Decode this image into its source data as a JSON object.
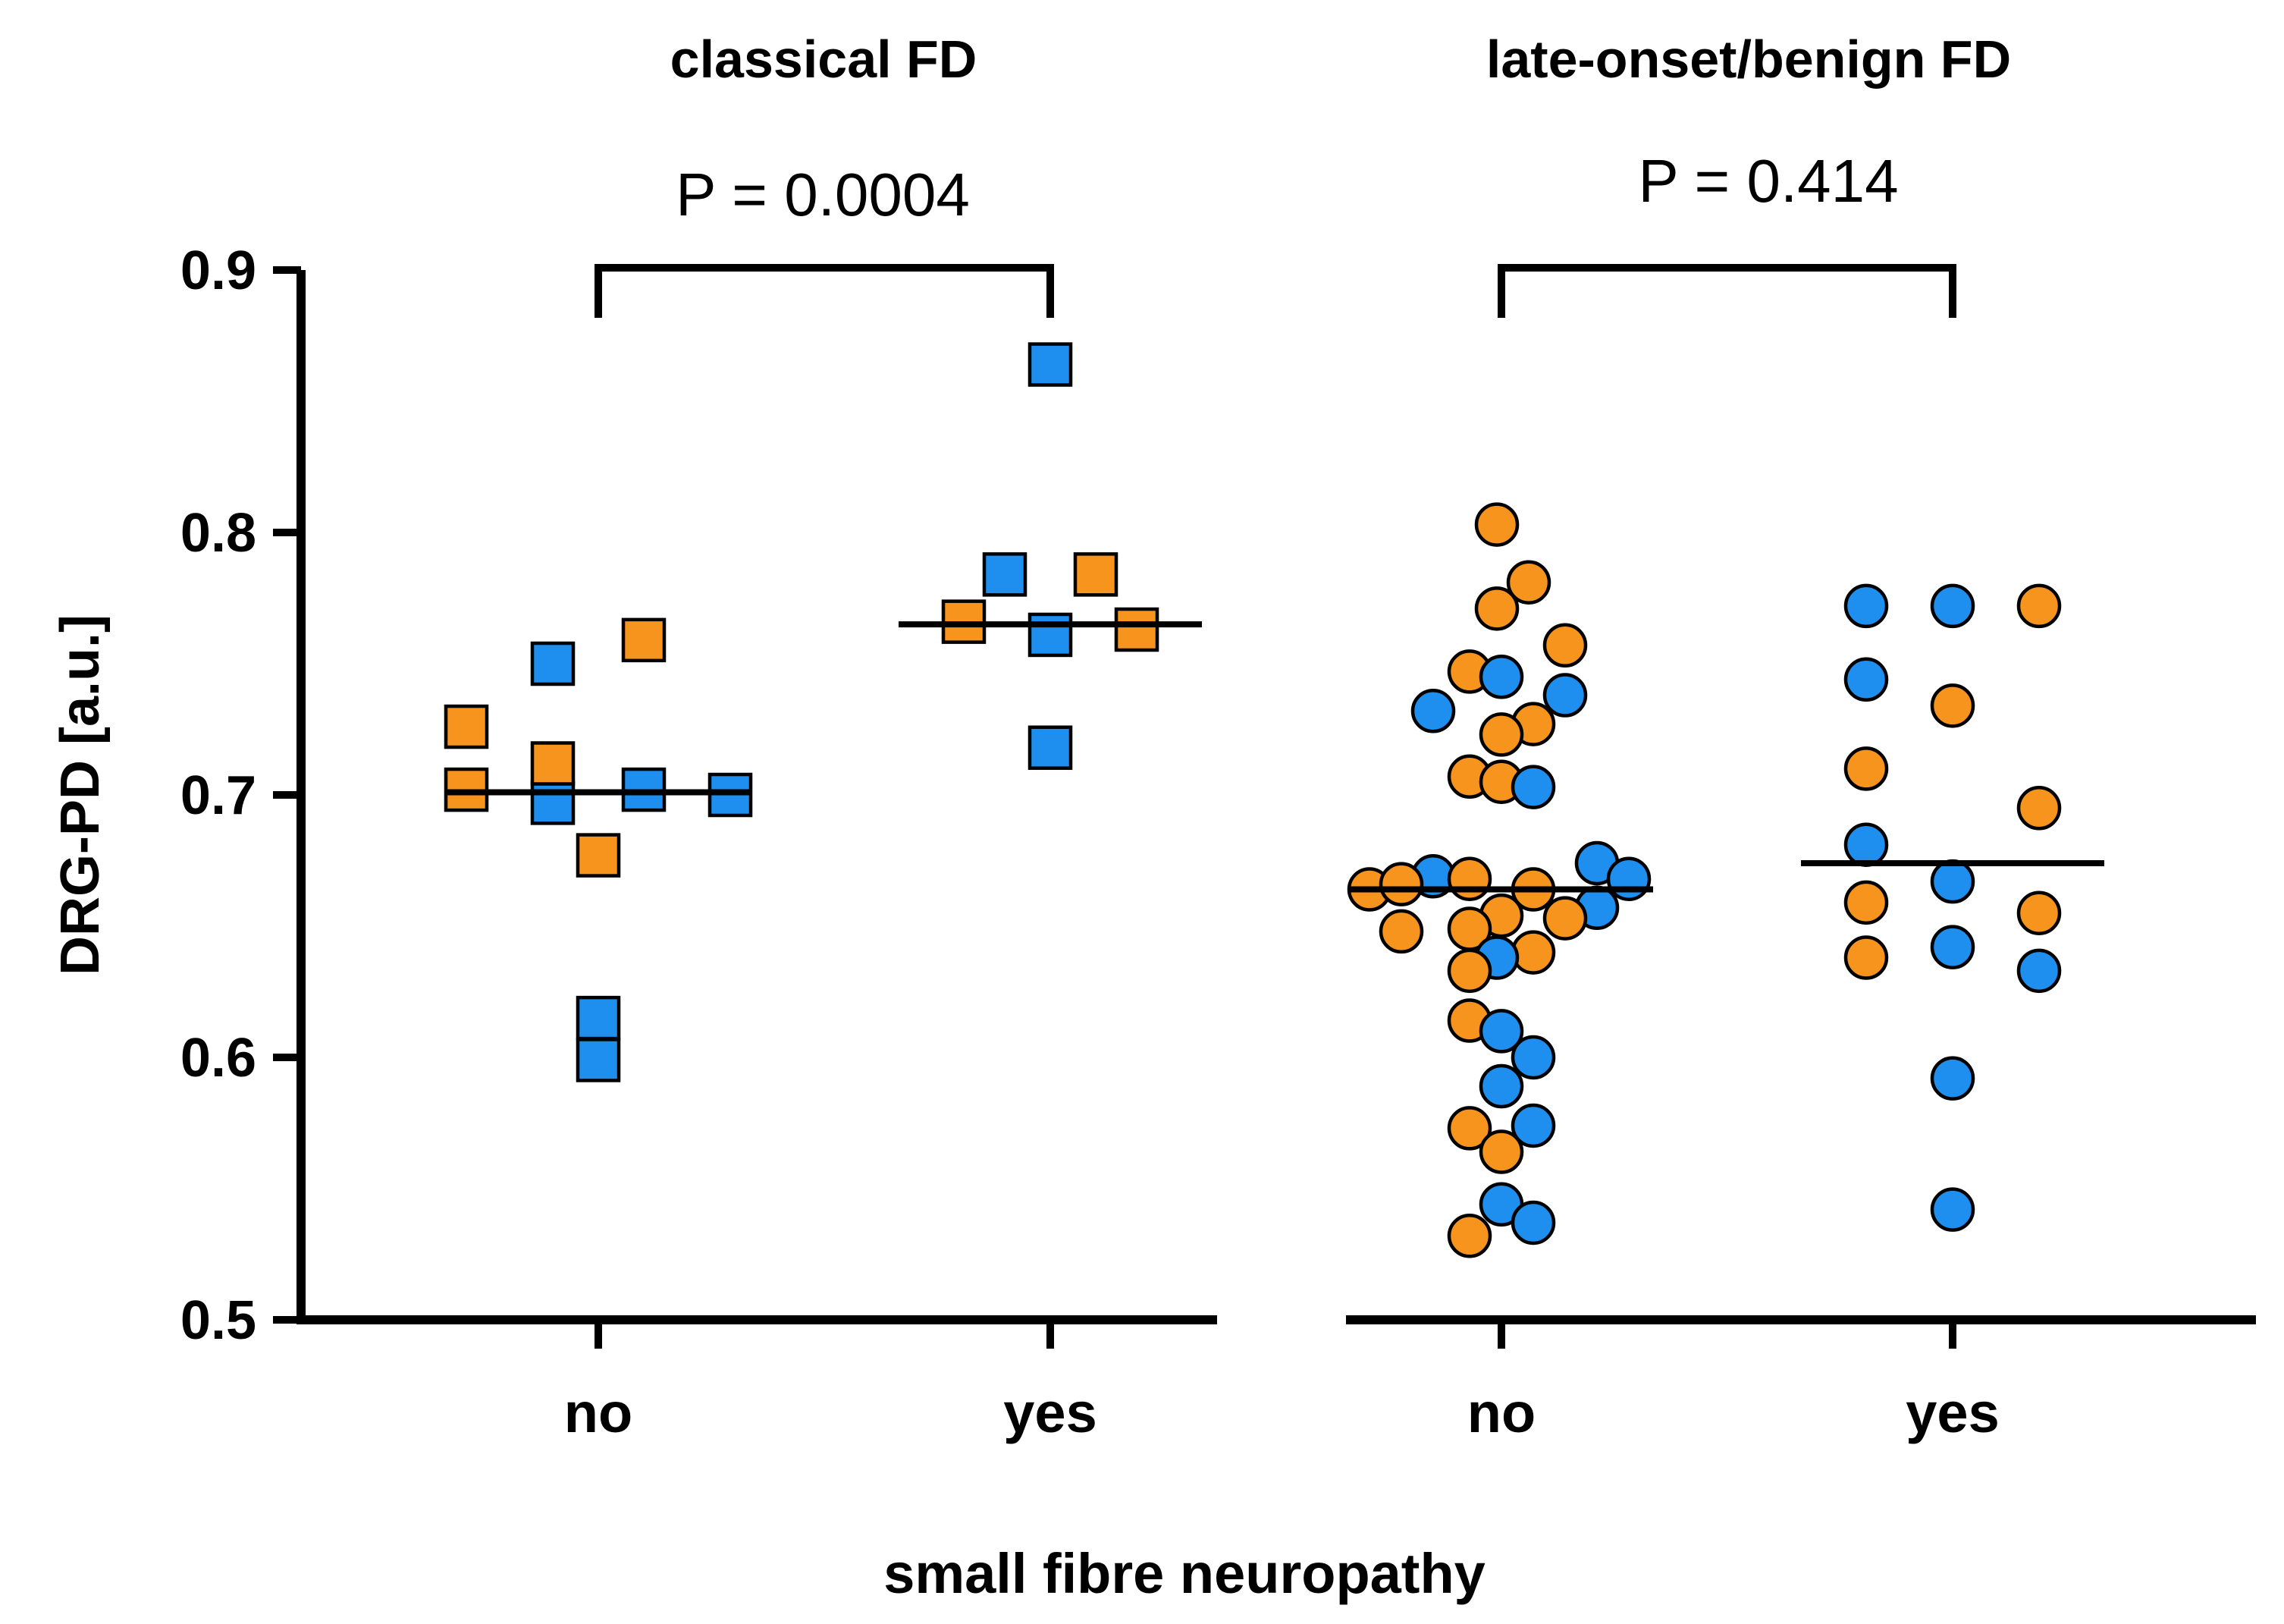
{
  "chart_data": {
    "type": "scatter",
    "subtype": "grouped dot plot with median lines",
    "ylabel": "DRG-PD [a.u.]",
    "xlabel": "small fibre neuropathy",
    "ylim": [
      0.5,
      0.9
    ],
    "yticks": [
      "0.5",
      "0.6",
      "0.7",
      "0.8",
      "0.9"
    ],
    "grid": false,
    "legend": "none",
    "colors": {
      "orange": "#F7941D",
      "blue": "#1E8FEE",
      "stroke": "#000000"
    },
    "panels": [
      {
        "title": "classical FD",
        "marker": "square",
        "categories": [
          "no",
          "yes"
        ],
        "p_value_label": "P = 0.0004",
        "groups": [
          {
            "category": "no",
            "median": 0.701,
            "points": [
              {
                "offset": -0.29,
                "value": 0.726,
                "color": "orange"
              },
              {
                "offset": -0.29,
                "value": 0.702,
                "color": "orange"
              },
              {
                "offset": -0.1,
                "value": 0.75,
                "color": "blue"
              },
              {
                "offset": -0.1,
                "value": 0.697,
                "color": "blue"
              },
              {
                "offset": -0.1,
                "value": 0.712,
                "color": "orange"
              },
              {
                "offset": 0.0,
                "value": 0.677,
                "color": "orange"
              },
              {
                "offset": 0.0,
                "value": 0.615,
                "color": "blue"
              },
              {
                "offset": 0.0,
                "value": 0.599,
                "color": "blue"
              },
              {
                "offset": 0.1,
                "value": 0.759,
                "color": "orange"
              },
              {
                "offset": 0.1,
                "value": 0.702,
                "color": "blue"
              },
              {
                "offset": 0.29,
                "value": 0.7,
                "color": "blue"
              }
            ]
          },
          {
            "category": "yes",
            "median": 0.765,
            "points": [
              {
                "offset": 0.0,
                "value": 0.864,
                "color": "blue"
              },
              {
                "offset": -0.1,
                "value": 0.784,
                "color": "blue"
              },
              {
                "offset": 0.1,
                "value": 0.784,
                "color": "orange"
              },
              {
                "offset": -0.19,
                "value": 0.766,
                "color": "orange"
              },
              {
                "offset": 0.0,
                "value": 0.761,
                "color": "blue"
              },
              {
                "offset": 0.19,
                "value": 0.763,
                "color": "orange"
              },
              {
                "offset": 0.0,
                "value": 0.718,
                "color": "blue"
              }
            ]
          }
        ]
      },
      {
        "title": "late-onset/benign FD",
        "marker": "circle",
        "categories": [
          "no",
          "yes"
        ],
        "p_value_label": "P = 0.414",
        "groups": [
          {
            "category": "no",
            "median": 0.664,
            "points": [
              {
                "offset": -0.01,
                "value": 0.803,
                "color": "orange"
              },
              {
                "offset": 0.06,
                "value": 0.781,
                "color": "orange"
              },
              {
                "offset": -0.01,
                "value": 0.771,
                "color": "orange"
              },
              {
                "offset": 0.14,
                "value": 0.757,
                "color": "orange"
              },
              {
                "offset": -0.07,
                "value": 0.747,
                "color": "orange"
              },
              {
                "offset": 0.0,
                "value": 0.745,
                "color": "blue"
              },
              {
                "offset": 0.14,
                "value": 0.738,
                "color": "blue"
              },
              {
                "offset": -0.15,
                "value": 0.732,
                "color": "blue"
              },
              {
                "offset": 0.07,
                "value": 0.727,
                "color": "orange"
              },
              {
                "offset": 0.0,
                "value": 0.723,
                "color": "orange"
              },
              {
                "offset": -0.07,
                "value": 0.707,
                "color": "orange"
              },
              {
                "offset": 0.0,
                "value": 0.705,
                "color": "orange"
              },
              {
                "offset": 0.07,
                "value": 0.703,
                "color": "blue"
              },
              {
                "offset": 0.21,
                "value": 0.674,
                "color": "blue"
              },
              {
                "offset": -0.15,
                "value": 0.669,
                "color": "blue"
              },
              {
                "offset": 0.28,
                "value": 0.668,
                "color": "blue"
              },
              {
                "offset": -0.07,
                "value": 0.668,
                "color": "orange"
              },
              {
                "offset": -0.29,
                "value": 0.664,
                "color": "orange"
              },
              {
                "offset": -0.22,
                "value": 0.666,
                "color": "orange"
              },
              {
                "offset": 0.07,
                "value": 0.664,
                "color": "orange"
              },
              {
                "offset": 0.21,
                "value": 0.657,
                "color": "blue"
              },
              {
                "offset": 0.14,
                "value": 0.653,
                "color": "orange"
              },
              {
                "offset": 0.0,
                "value": 0.654,
                "color": "orange"
              },
              {
                "offset": -0.07,
                "value": 0.649,
                "color": "orange"
              },
              {
                "offset": -0.22,
                "value": 0.648,
                "color": "orange"
              },
              {
                "offset": 0.07,
                "value": 0.64,
                "color": "orange"
              },
              {
                "offset": -0.01,
                "value": 0.638,
                "color": "blue"
              },
              {
                "offset": -0.07,
                "value": 0.633,
                "color": "orange"
              },
              {
                "offset": -0.07,
                "value": 0.614,
                "color": "orange"
              },
              {
                "offset": 0.0,
                "value": 0.61,
                "color": "blue"
              },
              {
                "offset": 0.07,
                "value": 0.6,
                "color": "blue"
              },
              {
                "offset": 0.0,
                "value": 0.589,
                "color": "blue"
              },
              {
                "offset": -0.07,
                "value": 0.573,
                "color": "orange"
              },
              {
                "offset": 0.07,
                "value": 0.574,
                "color": "blue"
              },
              {
                "offset": 0.0,
                "value": 0.564,
                "color": "orange"
              },
              {
                "offset": 0.0,
                "value": 0.544,
                "color": "blue"
              },
              {
                "offset": 0.07,
                "value": 0.537,
                "color": "blue"
              },
              {
                "offset": -0.07,
                "value": 0.532,
                "color": "orange"
              }
            ]
          },
          {
            "category": "yes",
            "median": 0.674,
            "points": [
              {
                "offset": -0.19,
                "value": 0.772,
                "color": "blue"
              },
              {
                "offset": 0.0,
                "value": 0.772,
                "color": "blue"
              },
              {
                "offset": 0.19,
                "value": 0.772,
                "color": "orange"
              },
              {
                "offset": -0.19,
                "value": 0.744,
                "color": "blue"
              },
              {
                "offset": 0.0,
                "value": 0.734,
                "color": "orange"
              },
              {
                "offset": -0.19,
                "value": 0.71,
                "color": "orange"
              },
              {
                "offset": 0.19,
                "value": 0.695,
                "color": "orange"
              },
              {
                "offset": -0.19,
                "value": 0.681,
                "color": "blue"
              },
              {
                "offset": 0.0,
                "value": 0.667,
                "color": "blue"
              },
              {
                "offset": -0.19,
                "value": 0.659,
                "color": "orange"
              },
              {
                "offset": 0.19,
                "value": 0.655,
                "color": "orange"
              },
              {
                "offset": 0.0,
                "value": 0.642,
                "color": "blue"
              },
              {
                "offset": -0.19,
                "value": 0.638,
                "color": "orange"
              },
              {
                "offset": 0.19,
                "value": 0.633,
                "color": "blue"
              },
              {
                "offset": 0.0,
                "value": 0.592,
                "color": "blue"
              },
              {
                "offset": 0.0,
                "value": 0.542,
                "color": "blue"
              }
            ]
          }
        ]
      }
    ]
  }
}
